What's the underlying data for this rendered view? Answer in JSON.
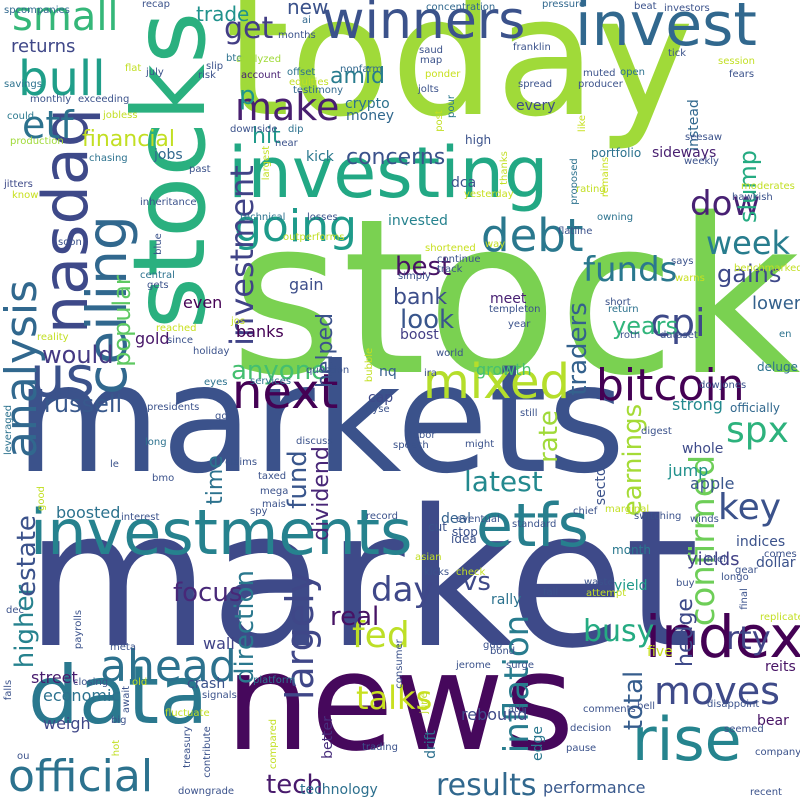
{
  "words": [
    {
      "text": "stock",
      "color": "#7ad151"
    },
    {
      "text": "market",
      "color": "#3e4a89"
    },
    {
      "text": "markets",
      "color": "#3b528b"
    },
    {
      "text": "today",
      "color": "#a0da39"
    },
    {
      "text": "news",
      "color": "#46085c"
    },
    {
      "text": "stocks",
      "color": "#2ab07f"
    },
    {
      "text": "investing",
      "color": "#22a884"
    },
    {
      "text": "invest",
      "color": "#31688e"
    },
    {
      "text": "data",
      "color": "#2a788e"
    },
    {
      "text": "investments",
      "color": "#26828e"
    },
    {
      "text": "index",
      "color": "#440154"
    },
    {
      "text": "nasdaq",
      "color": "#3e4989"
    },
    {
      "text": "winners",
      "color": "#3b528b"
    },
    {
      "text": "etfs",
      "color": "#277f8e"
    },
    {
      "text": "rise",
      "color": "#25848e"
    },
    {
      "text": "official",
      "color": "#2c728e"
    },
    {
      "text": "ceiling",
      "color": "#31688e"
    },
    {
      "text": "mixed",
      "color": "#b5de2b"
    },
    {
      "text": "bitcoin",
      "color": "#440154"
    },
    {
      "text": "next",
      "color": "#440154"
    },
    {
      "text": "us",
      "color": "#3b528b"
    },
    {
      "text": "ahead",
      "color": "#2c728e"
    },
    {
      "text": "bull",
      "color": "#1f9e89"
    },
    {
      "text": "going",
      "color": "#1e9b8a"
    },
    {
      "text": "debt",
      "color": "#2a788e"
    },
    {
      "text": "make",
      "color": "#481f70"
    },
    {
      "text": "small",
      "color": "#35b779"
    },
    {
      "text": "etf",
      "color": "#2c728e"
    },
    {
      "text": "get",
      "color": "#433e85"
    },
    {
      "text": "analysis",
      "color": "#31688e"
    },
    {
      "text": "investment",
      "color": "#404387"
    },
    {
      "text": "moves",
      "color": "#3e4a89"
    },
    {
      "text": "confirmed",
      "color": "#6ece58"
    },
    {
      "text": "fed",
      "color": "#bddf26"
    },
    {
      "text": "largely",
      "color": "#3f4788"
    },
    {
      "text": "inflation",
      "color": "#287c8e"
    },
    {
      "text": "spx",
      "color": "#2db27d"
    },
    {
      "text": "key",
      "color": "#3b528b"
    },
    {
      "text": "funds",
      "color": "#2a788e"
    },
    {
      "text": "week",
      "color": "#287d8e"
    },
    {
      "text": "cpi",
      "color": "#3e4989"
    },
    {
      "text": "dow",
      "color": "#482173"
    },
    {
      "text": "tech",
      "color": "#481a6c"
    },
    {
      "text": "results",
      "color": "#31688e"
    },
    {
      "text": "day",
      "color": "#3f4889"
    },
    {
      "text": "vs",
      "color": "#3e4a89"
    },
    {
      "text": "talks",
      "color": "#c8e020"
    },
    {
      "text": "busy",
      "color": "#25ab82"
    },
    {
      "text": "rty",
      "color": "#414487"
    },
    {
      "text": "latest",
      "color": "#23898e"
    },
    {
      "text": "earnings",
      "color": "#a5db36"
    },
    {
      "text": "total",
      "color": "#365d8d"
    },
    {
      "text": "direction",
      "color": "#2a788e"
    },
    {
      "text": "higher",
      "color": "#26828e"
    },
    {
      "text": "estate",
      "color": "#3b528b"
    },
    {
      "text": "real",
      "color": "#471365"
    },
    {
      "text": "focus",
      "color": "#482878"
    },
    {
      "text": "would",
      "color": "#443983"
    },
    {
      "text": "russell",
      "color": "#38588c"
    },
    {
      "text": "anyone",
      "color": "#44bf70"
    },
    {
      "text": "look",
      "color": "#39568c"
    },
    {
      "text": "bank",
      "color": "#3d4e8a"
    },
    {
      "text": "best",
      "color": "#471365"
    },
    {
      "text": "traders",
      "color": "#34618d"
    },
    {
      "text": "years",
      "color": "#31b57b"
    },
    {
      "text": "gains",
      "color": "#3e4989"
    },
    {
      "text": "popular",
      "color": "#5ec962"
    },
    {
      "text": "slump",
      "color": "#25ab82"
    },
    {
      "text": "rate",
      "color": "#a0da39"
    },
    {
      "text": "fund",
      "color": "#39568c"
    },
    {
      "text": "dividend",
      "color": "#482677"
    },
    {
      "text": "helped",
      "color": "#3b528b"
    },
    {
      "text": "time",
      "color": "#2c728e"
    },
    {
      "text": "hedge",
      "color": "#3e4a89"
    },
    {
      "text": "financial",
      "color": "#c2df23"
    },
    {
      "text": "concerns",
      "color": "#3b528b"
    },
    {
      "text": "amid",
      "color": "#287c8e"
    },
    {
      "text": "returns",
      "color": "#3f4788"
    },
    {
      "text": "hit",
      "color": "#1f9a8a"
    },
    {
      "text": "p",
      "color": "#1f958b"
    },
    {
      "text": "trade",
      "color": "#20928c"
    },
    {
      "text": "new",
      "color": "#3b528b"
    },
    {
      "text": "boosted",
      "color": "#2c728e"
    },
    {
      "text": "economic",
      "color": "#2c728e"
    },
    {
      "text": "street",
      "color": "#481c6e"
    },
    {
      "text": "weigh",
      "color": "#3f4788"
    },
    {
      "text": "performance",
      "color": "#38588c"
    },
    {
      "text": "rebound",
      "color": "#3e4a89"
    },
    {
      "text": "growth",
      "color": "#46c06f"
    },
    {
      "text": "strong",
      "color": "#23898e"
    },
    {
      "text": "jump",
      "color": "#21918c"
    },
    {
      "text": "apple",
      "color": "#39568c"
    },
    {
      "text": "yields",
      "color": "#424186"
    },
    {
      "text": "lower",
      "color": "#34618d"
    },
    {
      "text": "technology",
      "color": "#2d708e"
    },
    {
      "text": "even",
      "color": "#440154"
    },
    {
      "text": "gold",
      "color": "#481769"
    },
    {
      "text": "gain",
      "color": "#3d4e8a"
    },
    {
      "text": "banks",
      "color": "#440154"
    },
    {
      "text": "wall",
      "color": "#404387"
    },
    {
      "text": "jobs",
      "color": "#31688e"
    },
    {
      "text": "crash",
      "color": "#3b528b"
    },
    {
      "text": "edge",
      "color": "#2a788e"
    },
    {
      "text": "drift",
      "color": "#2d708e"
    },
    {
      "text": "better",
      "color": "#472d7b"
    },
    {
      "text": "deal",
      "color": "#34618d"
    },
    {
      "text": "invested",
      "color": "#26828e"
    },
    {
      "text": "boost",
      "color": "#433e85"
    },
    {
      "text": "meet",
      "color": "#482173"
    },
    {
      "text": "rally",
      "color": "#2c728e"
    },
    {
      "text": "kick",
      "color": "#2a788e"
    },
    {
      "text": "dca",
      "color": "#3b528b"
    },
    {
      "text": "sideways",
      "color": "#481f70"
    },
    {
      "text": "crypto",
      "color": "#2c728e"
    },
    {
      "text": "money",
      "color": "#31688e"
    },
    {
      "text": "nq",
      "color": "#355f8d"
    },
    {
      "text": "cap",
      "color": "#3e4989"
    },
    {
      "text": "sector",
      "color": "#3b528b"
    },
    {
      "text": "bear",
      "color": "#471365"
    },
    {
      "text": "five",
      "color": "#c8e020"
    },
    {
      "text": "cut",
      "color": "#3b528b"
    },
    {
      "text": "yield",
      "color": "#1f9a8a"
    },
    {
      "text": "instead",
      "color": "#31688e"
    },
    {
      "text": "every",
      "color": "#3e4a89"
    },
    {
      "text": "high",
      "color": "#3b528b"
    },
    {
      "text": "portfolio",
      "color": "#2c728e"
    },
    {
      "text": "indices",
      "color": "#3b528b"
    },
    {
      "text": "whole",
      "color": "#3e4a89"
    },
    {
      "text": "officially",
      "color": "#31688e"
    },
    {
      "text": "stop",
      "color": "#3b528b"
    },
    {
      "text": "dollar",
      "color": "#3b528b"
    },
    {
      "text": "reits",
      "color": "#471365"
    },
    {
      "text": "idea",
      "color": "#3b528b"
    },
    {
      "text": "deluge",
      "color": "#2c728e"
    },
    {
      "text": "month",
      "color": "#2a788e"
    },
    {
      "text": "spcompanies",
      "color": "#31688e"
    },
    {
      "text": "could",
      "color": "#2a788e"
    },
    {
      "text": "savings",
      "color": "#2c728e"
    },
    {
      "text": "monthly",
      "color": "#3b528b"
    },
    {
      "text": "exceeding",
      "color": "#3b528b"
    },
    {
      "text": "jobless",
      "color": "#c2df23"
    },
    {
      "text": "production",
      "color": "#a0da39"
    },
    {
      "text": "chasing",
      "color": "#2c728e"
    },
    {
      "text": "jitters",
      "color": "#3e4a89"
    },
    {
      "text": "know",
      "color": "#c8e020"
    },
    {
      "text": "recap",
      "color": "#3b528b"
    },
    {
      "text": "ai",
      "color": "#31688e"
    },
    {
      "text": "months",
      "color": "#3b528b"
    },
    {
      "text": "btc",
      "color": "#2c728e"
    },
    {
      "text": "analyzed",
      "color": "#a0da39"
    },
    {
      "text": "account",
      "color": "#482173"
    },
    {
      "text": "nonfarm",
      "color": "#31688e"
    },
    {
      "text": "testimony",
      "color": "#31688e"
    },
    {
      "text": "equities",
      "color": "#c2df23"
    },
    {
      "text": "offset",
      "color": "#2c728e"
    },
    {
      "text": "map",
      "color": "#3b528b"
    },
    {
      "text": "saud",
      "color": "#3b528b"
    },
    {
      "text": "ponder",
      "color": "#c8e020"
    },
    {
      "text": "jolts",
      "color": "#3b528b"
    },
    {
      "text": "pour",
      "color": "#2a788e"
    },
    {
      "text": "post",
      "color": "#c2df23"
    },
    {
      "text": "concentration",
      "color": "#31688e"
    },
    {
      "text": "franklin",
      "color": "#3b528b"
    },
    {
      "text": "spread",
      "color": "#3b528b"
    },
    {
      "text": "muted",
      "color": "#3b528b"
    },
    {
      "text": "open",
      "color": "#2c728e"
    },
    {
      "text": "producer",
      "color": "#3b528b"
    },
    {
      "text": "pressure",
      "color": "#31688e"
    },
    {
      "text": "beat",
      "color": "#3b528b"
    },
    {
      "text": "investors",
      "color": "#3b528b"
    },
    {
      "text": "tick",
      "color": "#3b528b"
    },
    {
      "text": "session",
      "color": "#c2df23"
    },
    {
      "text": "fears",
      "color": "#3b528b"
    },
    {
      "text": "like",
      "color": "#c8e020"
    },
    {
      "text": "flat",
      "color": "#c2df23"
    },
    {
      "text": "july",
      "color": "#3b528b"
    },
    {
      "text": "risk",
      "color": "#3b528b"
    },
    {
      "text": "slip",
      "color": "#3b528b"
    },
    {
      "text": "seesaw",
      "color": "#3b528b"
    },
    {
      "text": "weekly",
      "color": "#3b528b"
    },
    {
      "text": "hawkish",
      "color": "#3b528b"
    },
    {
      "text": "moderates",
      "color": "#c2df23"
    },
    {
      "text": "thanks",
      "color": "#c2df23"
    },
    {
      "text": "proposed",
      "color": "#2c728e"
    },
    {
      "text": "remains",
      "color": "#c8e020"
    },
    {
      "text": "rating",
      "color": "#c2df23"
    },
    {
      "text": "yesterday",
      "color": "#c8e020"
    },
    {
      "text": "owning",
      "color": "#2c728e"
    },
    {
      "text": "flatline",
      "color": "#3b528b"
    },
    {
      "text": "largest",
      "color": "#c2df23"
    },
    {
      "text": "downside",
      "color": "#3b528b"
    },
    {
      "text": "dip",
      "color": "#2c728e"
    },
    {
      "text": "near",
      "color": "#3b528b"
    },
    {
      "text": "past",
      "color": "#3b528b"
    },
    {
      "text": "inheritance",
      "color": "#3b528b"
    },
    {
      "text": "technical",
      "color": "#2c728e"
    },
    {
      "text": "losses",
      "color": "#3b528b"
    },
    {
      "text": "way",
      "color": "#c2df23"
    },
    {
      "text": "soon",
      "color": "#3b528b"
    },
    {
      "text": "blue",
      "color": "#3b528b"
    },
    {
      "text": "shortened",
      "color": "#c8e020"
    },
    {
      "text": "outperforms",
      "color": "#c2df23"
    },
    {
      "text": "continue",
      "color": "#3b528b"
    },
    {
      "text": "simply",
      "color": "#3b528b"
    },
    {
      "text": "track",
      "color": "#3b528b"
    },
    {
      "text": "central",
      "color": "#2c728e"
    },
    {
      "text": "gets",
      "color": "#3b528b"
    },
    {
      "text": "benchmarked",
      "color": "#c2df23"
    },
    {
      "text": "says",
      "color": "#3b528b"
    },
    {
      "text": "warns",
      "color": "#c8e020"
    },
    {
      "text": "short",
      "color": "#3b528b"
    },
    {
      "text": "return",
      "color": "#2c728e"
    },
    {
      "text": "templeton",
      "color": "#3b528b"
    },
    {
      "text": "year",
      "color": "#3b528b"
    },
    {
      "text": "roth",
      "color": "#3b528b"
    },
    {
      "text": "dataset",
      "color": "#3b528b"
    },
    {
      "text": "en",
      "color": "#2c728e"
    },
    {
      "text": "jos",
      "color": "#c2df23"
    },
    {
      "text": "reached",
      "color": "#c8e020"
    },
    {
      "text": "since",
      "color": "#3b528b"
    },
    {
      "text": "reality",
      "color": "#c2df23"
    },
    {
      "text": "holiday",
      "color": "#3b528b"
    },
    {
      "text": "world",
      "color": "#3b528b"
    },
    {
      "text": "ira",
      "color": "#3b528b"
    },
    {
      "text": "dowjones",
      "color": "#3b528b"
    },
    {
      "text": "question",
      "color": "#3b528b"
    },
    {
      "text": "eyes",
      "color": "#2c728e"
    },
    {
      "text": "services",
      "color": "#2c728e"
    },
    {
      "text": "bubble",
      "color": "#c2df23"
    },
    {
      "text": "nyse",
      "color": "#3b528b"
    },
    {
      "text": "still",
      "color": "#3b528b"
    },
    {
      "text": "presidents",
      "color": "#3b528b"
    },
    {
      "text": "go",
      "color": "#3b528b"
    },
    {
      "text": "long",
      "color": "#2c728e"
    },
    {
      "text": "discuss",
      "color": "#3b528b"
    },
    {
      "text": "speech",
      "color": "#3b528b"
    },
    {
      "text": "labor",
      "color": "#3b528b"
    },
    {
      "text": "might",
      "color": "#3b528b"
    },
    {
      "text": "digest",
      "color": "#3b528b"
    },
    {
      "text": "leveraged",
      "color": "#2c728e"
    },
    {
      "text": "le",
      "color": "#3b528b"
    },
    {
      "text": "claims",
      "color": "#3b528b"
    },
    {
      "text": "bmo",
      "color": "#3b528b"
    },
    {
      "text": "taxed",
      "color": "#3b528b"
    },
    {
      "text": "mega",
      "color": "#3b528b"
    },
    {
      "text": "mais",
      "color": "#3b528b"
    },
    {
      "text": "spy",
      "color": "#3b528b"
    },
    {
      "text": "good",
      "color": "#c2df23"
    },
    {
      "text": "interest",
      "color": "#3b528b"
    },
    {
      "text": "record",
      "color": "#3b528b"
    },
    {
      "text": "eventual",
      "color": "#3b528b"
    },
    {
      "text": "standard",
      "color": "#3b528b"
    },
    {
      "text": "chief",
      "color": "#3b528b"
    },
    {
      "text": "switching",
      "color": "#3b528b"
    },
    {
      "text": "winds",
      "color": "#3b528b"
    },
    {
      "text": "marginal",
      "color": "#c2df23"
    },
    {
      "text": "intel",
      "color": "#3b528b"
    },
    {
      "text": "gear",
      "color": "#3b528b"
    },
    {
      "text": "longo",
      "color": "#3b528b"
    },
    {
      "text": "comes",
      "color": "#3b528b"
    },
    {
      "text": "asian",
      "color": "#c2df23"
    },
    {
      "text": "dec",
      "color": "#3b528b"
    },
    {
      "text": "check",
      "color": "#c2df23"
    },
    {
      "text": "kicks",
      "color": "#3b528b"
    },
    {
      "text": "waste",
      "color": "#3b528b"
    },
    {
      "text": "attempt",
      "color": "#c2df23"
    },
    {
      "text": "buy",
      "color": "#3b528b"
    },
    {
      "text": "fall",
      "color": "#3b528b"
    },
    {
      "text": "final",
      "color": "#3b528b"
    },
    {
      "text": "replicate",
      "color": "#c2df23"
    },
    {
      "text": "payrolls",
      "color": "#3b528b"
    },
    {
      "text": "meta",
      "color": "#3b528b"
    },
    {
      "text": "gdp",
      "color": "#3b528b"
    },
    {
      "text": "bond",
      "color": "#3b528b"
    },
    {
      "text": "surge",
      "color": "#3b528b"
    },
    {
      "text": "jerome",
      "color": "#3b528b"
    },
    {
      "text": "consumer",
      "color": "#3b528b"
    },
    {
      "text": "signals",
      "color": "#3b528b"
    },
    {
      "text": "await",
      "color": "#3b528b"
    },
    {
      "text": "old",
      "color": "#c2df23"
    },
    {
      "text": "closing",
      "color": "#3b528b"
    },
    {
      "text": "platform",
      "color": "#2c728e"
    },
    {
      "text": "june",
      "color": "#c2df23"
    },
    {
      "text": "comments",
      "color": "#3b528b"
    },
    {
      "text": "ath",
      "color": "#3b528b"
    },
    {
      "text": "bell",
      "color": "#3b528b"
    },
    {
      "text": "disappoint",
      "color": "#3b528b"
    },
    {
      "text": "falls",
      "color": "#3b528b"
    },
    {
      "text": "big",
      "color": "#3b528b"
    },
    {
      "text": "fluctuate",
      "color": "#c2df23"
    },
    {
      "text": "hot",
      "color": "#c2df23"
    },
    {
      "text": "treasury",
      "color": "#3b528b"
    },
    {
      "text": "contribute",
      "color": "#3b528b"
    },
    {
      "text": "compared",
      "color": "#c2df23"
    },
    {
      "text": "decision",
      "color": "#3b528b"
    },
    {
      "text": "pause",
      "color": "#3b528b"
    },
    {
      "text": "seemed",
      "color": "#3b528b"
    },
    {
      "text": "company",
      "color": "#3b528b"
    },
    {
      "text": "ou",
      "color": "#3b528b"
    },
    {
      "text": "downgrade",
      "color": "#3b528b"
    },
    {
      "text": "trading",
      "color": "#3b528b"
    },
    {
      "text": "recent",
      "color": "#3b528b"
    }
  ]
}
